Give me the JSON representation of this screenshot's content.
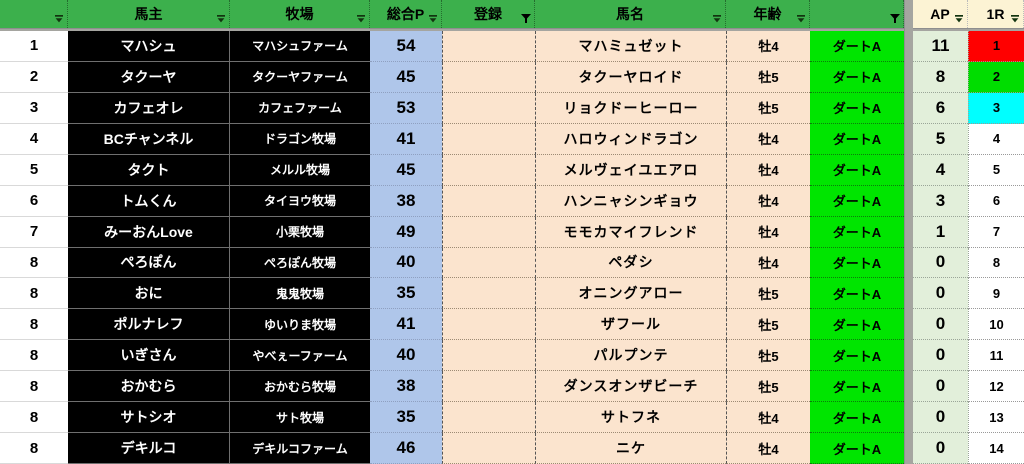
{
  "columns": [
    {
      "key": "rank",
      "label": "",
      "filter": "dropdown"
    },
    {
      "key": "owner",
      "label": "馬主",
      "filter": "dropdown"
    },
    {
      "key": "farm",
      "label": "牧場",
      "filter": "dropdown"
    },
    {
      "key": "totalP",
      "label": "総合P",
      "filter": "dropdown"
    },
    {
      "key": "reg",
      "label": "登録",
      "filter": "funnel"
    },
    {
      "key": "horse",
      "label": "馬名",
      "filter": "dropdown"
    },
    {
      "key": "age",
      "label": "年齢",
      "filter": "dropdown"
    },
    {
      "key": "class",
      "label": "",
      "filter": "funnel"
    },
    {
      "key": "ap",
      "label": "AP",
      "filter": "dropdown"
    },
    {
      "key": "r1",
      "label": "1R",
      "filter": "dropdown"
    }
  ],
  "rows": [
    {
      "rank": "1",
      "owner": "マハシュ",
      "farm": "マハシュファーム",
      "totalP": "54",
      "reg": "",
      "horse": "マハミュゼット",
      "age": "牡4",
      "class": "ダートA",
      "ap": "11",
      "r1": "1",
      "r1_bg": "#FF0000"
    },
    {
      "rank": "2",
      "owner": "タクーヤ",
      "farm": "タクーヤファーム",
      "totalP": "45",
      "reg": "",
      "horse": "タクーヤロイド",
      "age": "牡5",
      "class": "ダートA",
      "ap": "8",
      "r1": "2",
      "r1_bg": "#00DD00"
    },
    {
      "rank": "3",
      "owner": "カフェオレ",
      "farm": "カフェファーム",
      "totalP": "53",
      "reg": "",
      "horse": "リョクドーヒーロー",
      "age": "牡5",
      "class": "ダートA",
      "ap": "6",
      "r1": "3",
      "r1_bg": "#00FFFF"
    },
    {
      "rank": "4",
      "owner": "BCチャンネル",
      "farm": "ドラゴン牧場",
      "totalP": "41",
      "reg": "",
      "horse": "ハロウィンドラゴン",
      "age": "牡4",
      "class": "ダートA",
      "ap": "5",
      "r1": "4",
      "r1_bg": "#FFFFFF"
    },
    {
      "rank": "5",
      "owner": "タクト",
      "farm": "メルル牧場",
      "totalP": "45",
      "reg": "",
      "horse": "メルヴェイユエアロ",
      "age": "牡4",
      "class": "ダートA",
      "ap": "4",
      "r1": "5",
      "r1_bg": "#FFFFFF"
    },
    {
      "rank": "6",
      "owner": "トムくん",
      "farm": "タイヨウ牧場",
      "totalP": "38",
      "reg": "",
      "horse": "ハンニャシンギョウ",
      "age": "牡4",
      "class": "ダートA",
      "ap": "3",
      "r1": "6",
      "r1_bg": "#FFFFFF"
    },
    {
      "rank": "7",
      "owner": "みーおんLove",
      "farm": "小栗牧場",
      "totalP": "49",
      "reg": "",
      "horse": "モモカマイフレンド",
      "age": "牡4",
      "class": "ダートA",
      "ap": "1",
      "r1": "7",
      "r1_bg": "#FFFFFF"
    },
    {
      "rank": "8",
      "owner": "ぺろぽん",
      "farm": "ぺろぽん牧場",
      "totalP": "40",
      "reg": "",
      "horse": "ペダシ",
      "age": "牡4",
      "class": "ダートA",
      "ap": "0",
      "r1": "8",
      "r1_bg": "#FFFFFF"
    },
    {
      "rank": "8",
      "owner": "おに",
      "farm": "鬼鬼牧場",
      "totalP": "35",
      "reg": "",
      "horse": "オニングアロー",
      "age": "牡5",
      "class": "ダートA",
      "ap": "0",
      "r1": "9",
      "r1_bg": "#FFFFFF"
    },
    {
      "rank": "8",
      "owner": "ポルナレフ",
      "farm": "ゆいりま牧場",
      "totalP": "41",
      "reg": "",
      "horse": "ザフール",
      "age": "牡5",
      "class": "ダートA",
      "ap": "0",
      "r1": "10",
      "r1_bg": "#FFFFFF"
    },
    {
      "rank": "8",
      "owner": "いぎさん",
      "farm": "やべぇーファーム",
      "totalP": "40",
      "reg": "",
      "horse": "パルプンテ",
      "age": "牡5",
      "class": "ダートA",
      "ap": "0",
      "r1": "11",
      "r1_bg": "#FFFFFF"
    },
    {
      "rank": "8",
      "owner": "おかむら",
      "farm": "おかむら牧場",
      "totalP": "38",
      "reg": "",
      "horse": "ダンスオンザビーチ",
      "age": "牡5",
      "class": "ダートA",
      "ap": "0",
      "r1": "12",
      "r1_bg": "#FFFFFF"
    },
    {
      "rank": "8",
      "owner": "サトシオ",
      "farm": "サト牧場",
      "totalP": "35",
      "reg": "",
      "horse": "サトフネ",
      "age": "牡4",
      "class": "ダートA",
      "ap": "0",
      "r1": "13",
      "r1_bg": "#FFFFFF"
    },
    {
      "rank": "8",
      "owner": "デキルコ",
      "farm": "デキルコファーム",
      "totalP": "46",
      "reg": "",
      "horse": "ニケ",
      "age": "牡4",
      "class": "ダートA",
      "ap": "0",
      "r1": "14",
      "r1_bg": "#FFFFFF"
    }
  ],
  "colors": {
    "header_green": "#3CB04C",
    "header_cream": "#FCF3D4",
    "row_black": "#000000",
    "points_blue": "#AFC6EA",
    "entry_tan": "#FBE4CE",
    "class_green": "#00E500",
    "ap_green": "#E2EFDA",
    "r1_red": "#FF0000",
    "r1_green": "#00DD00",
    "r1_cyan": "#00FFFF",
    "divider_gray": "#A5A5A0"
  }
}
